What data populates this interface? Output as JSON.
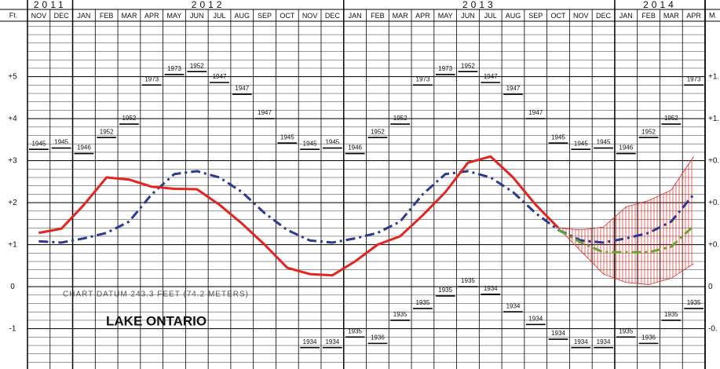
{
  "chart_data": {
    "type": "line",
    "years": [
      {
        "label": "2011",
        "span": 2
      },
      {
        "label": "2012",
        "span": 12
      },
      {
        "label": "2013",
        "span": 12
      },
      {
        "label": "2014",
        "span": 4
      }
    ],
    "y_axis_title": "Ft.",
    "y2_axis_title": "M.",
    "categories": [
      "NOV",
      "DEC",
      "JAN",
      "FEB",
      "MAR",
      "APR",
      "MAY",
      "JUN",
      "JUL",
      "AUG",
      "SEP",
      "OCT",
      "NOV",
      "DEC",
      "JAN",
      "FEB",
      "MAR",
      "APR",
      "MAY",
      "JUN",
      "JUL",
      "AUG",
      "SEP",
      "OCT",
      "NOV",
      "DEC",
      "JAN",
      "FEB",
      "MAR",
      "APR"
    ],
    "ylim": [
      -1.96,
      6.32
    ],
    "yticks": [
      {
        "value": 5,
        "label": "+5"
      },
      {
        "value": 4,
        "label": "+4"
      },
      {
        "value": 3,
        "label": "+3"
      },
      {
        "value": 2,
        "label": "+2"
      },
      {
        "value": 1,
        "label": "+1"
      },
      0,
      -1
    ],
    "y2ticks": [
      {
        "value": 5,
        "label": "+1."
      },
      {
        "value": 4,
        "label": "+1."
      },
      {
        "value": 3,
        "label": "+0."
      },
      {
        "value": 2,
        "label": "+0."
      },
      {
        "value": 1,
        "label": "+0."
      },
      {
        "value": 0,
        "label": "0"
      },
      {
        "value": -1,
        "label": "-0."
      }
    ],
    "minor_yticks": [
      -1.8,
      -1.6,
      -1.4,
      -1.2,
      -1,
      -0.8,
      -0.6,
      -0.4,
      -0.2,
      0,
      0.2,
      0.4,
      0.6,
      0.8,
      1,
      1.2,
      1.4,
      1.6,
      1.8,
      2,
      2.2,
      2.4,
      2.6,
      2.8,
      3,
      3.2,
      3.4,
      3.6,
      3.8,
      4,
      4.2,
      4.4,
      4.6,
      4.8,
      5,
      5.2,
      5.4,
      5.6,
      5.8,
      6,
      6.2
    ],
    "series": [
      {
        "color": "#2b3a94",
        "dash": true,
        "values": [
          1.08,
          1.05,
          1.15,
          1.28,
          1.55,
          2.2,
          2.68,
          2.75,
          2.6,
          2.25,
          1.75,
          1.35,
          1.1,
          1.05,
          1.15,
          1.28,
          1.55,
          2.2,
          2.68,
          2.75,
          2.6,
          2.25,
          1.75,
          1.35,
          1.1,
          1.05,
          1.15,
          1.28,
          1.55,
          2.2
        ]
      },
      {
        "color": "#e8231f",
        "dash": false,
        "values": [
          1.28,
          1.38,
          1.95,
          2.6,
          2.55,
          2.38,
          2.33,
          2.32,
          1.95,
          1.5,
          1.0,
          0.45,
          0.3,
          0.27,
          0.6,
          1.0,
          1.2,
          1.7,
          2.25,
          2.95,
          3.1,
          2.6,
          1.95,
          1.4,
          null,
          null,
          null,
          null,
          null,
          null
        ]
      },
      {
        "color": "#6aa532",
        "dash": true,
        "values": [
          null,
          null,
          null,
          null,
          null,
          null,
          null,
          null,
          null,
          null,
          null,
          null,
          null,
          null,
          null,
          null,
          null,
          null,
          null,
          null,
          null,
          null,
          null,
          1.35,
          1.05,
          0.82,
          0.82,
          0.82,
          0.95,
          1.45
        ]
      }
    ],
    "forecast_range": {
      "color": "#e8231f",
      "upper": [
        null,
        null,
        null,
        null,
        null,
        null,
        null,
        null,
        null,
        null,
        null,
        null,
        null,
        null,
        null,
        null,
        null,
        null,
        null,
        null,
        null,
        null,
        null,
        1.4,
        1.35,
        1.42,
        1.9,
        2.05,
        2.3,
        3.1
      ],
      "lower": [
        null,
        null,
        null,
        null,
        null,
        null,
        null,
        null,
        null,
        null,
        null,
        null,
        null,
        null,
        null,
        null,
        null,
        null,
        null,
        null,
        null,
        null,
        null,
        1.4,
        0.85,
        0.3,
        0.1,
        0.05,
        0.2,
        0.55
      ]
    },
    "record_high": {
      "values": [
        3.27,
        3.3,
        3.17,
        3.55,
        3.87,
        4.8,
        5.05,
        5.12,
        4.86,
        4.58,
        4.0,
        3.42,
        3.27,
        3.3,
        3.17,
        3.55,
        3.87,
        4.8,
        5.05,
        5.12,
        4.86,
        4.58,
        4.0,
        3.42,
        3.27,
        3.3,
        3.17,
        3.55,
        3.87,
        4.8
      ],
      "years": [
        "1945",
        "1945",
        "1946",
        "1952",
        "1952",
        "1973",
        "1973",
        "1952",
        "1947",
        "1947",
        "1947",
        "1945",
        "1945",
        "1945",
        "1946",
        "1952",
        "1952",
        "1973",
        "1973",
        "1952",
        "1947",
        "1947",
        "1947",
        "1945",
        "1945",
        "1945",
        "1946",
        "1952",
        "1952",
        "1973"
      ]
    },
    "record_low": {
      "values": [
        null,
        null,
        null,
        null,
        null,
        null,
        null,
        null,
        null,
        null,
        null,
        null,
        -1.45,
        -1.45,
        -1.2,
        -1.35,
        -0.8,
        -0.52,
        -0.22,
        0,
        -0.18,
        -0.6,
        -0.9,
        -1.25,
        -1.45,
        -1.45,
        -1.2,
        -1.35,
        -0.8,
        -0.52
      ],
      "years": [
        null,
        null,
        null,
        null,
        null,
        null,
        null,
        null,
        null,
        null,
        null,
        null,
        "1934",
        "1934",
        "1935",
        "1936",
        "1935",
        "1935",
        "1935",
        "1935",
        "1934",
        "1934",
        "1934",
        "1934",
        "1934",
        "1934",
        "1935",
        "1936",
        "1935",
        "1935"
      ]
    },
    "annotations": [
      "CHART DATUM   243.3 FEET (74.2 METERS)",
      "LAKE ONTARIO"
    ]
  }
}
